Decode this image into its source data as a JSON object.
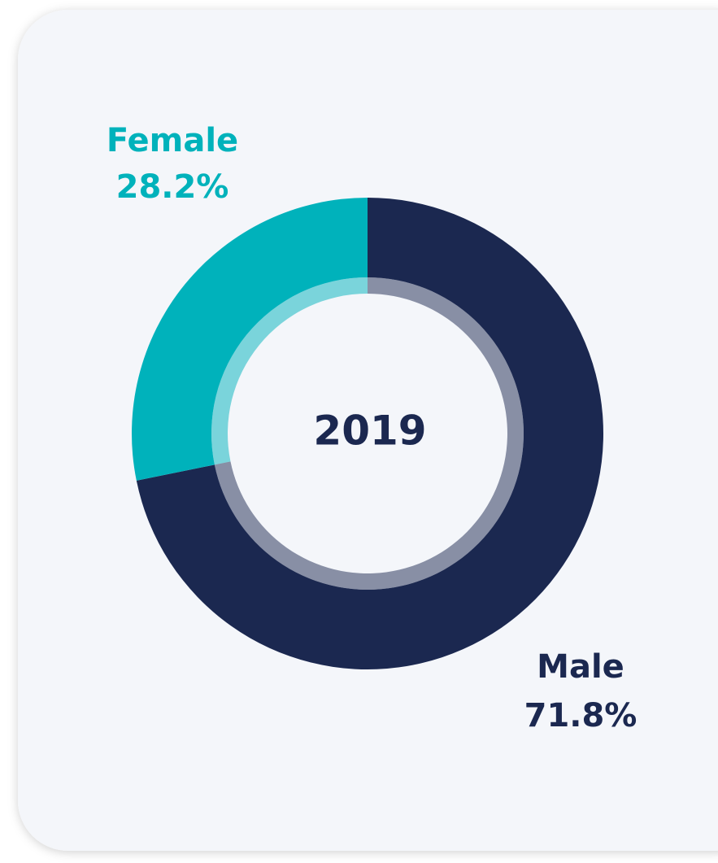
{
  "chart_data": {
    "type": "donut",
    "center_label": "2019",
    "categories": [
      "Female",
      "Male"
    ],
    "values": [
      28.2,
      71.8
    ],
    "value_labels": [
      "28.2%",
      "71.8%"
    ],
    "colors": [
      "#00b2bb",
      "#1b2850"
    ]
  }
}
